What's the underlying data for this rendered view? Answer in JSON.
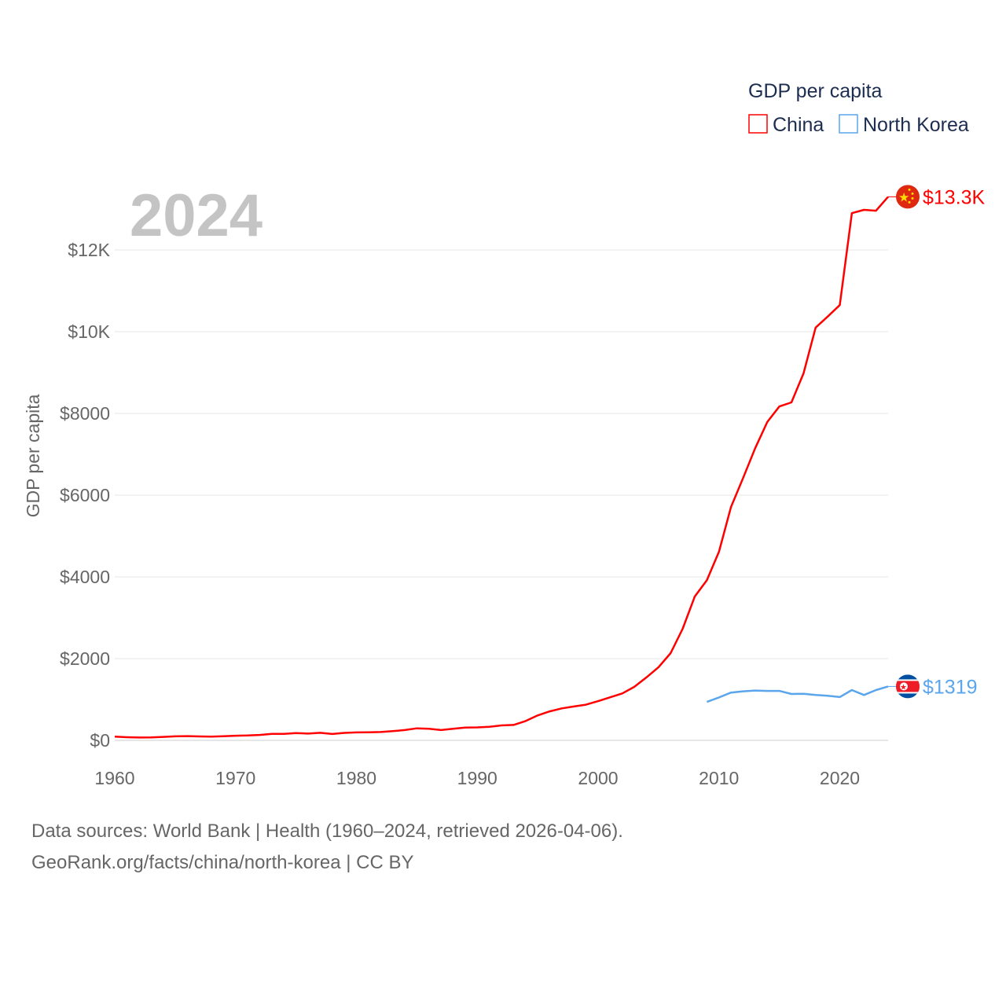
{
  "chart_data": {
    "type": "line",
    "title": "GDP per capita",
    "year_label": "2024",
    "ylabel": "GDP per capita",
    "xlabel": "",
    "xlim": [
      1960,
      2024
    ],
    "ylim": [
      0,
      13300
    ],
    "x_ticks": [
      1960,
      1970,
      1980,
      1990,
      2000,
      2010,
      2020
    ],
    "y_ticks": [
      0,
      2000,
      4000,
      6000,
      8000,
      10000,
      12000
    ],
    "y_tick_labels": [
      "$0",
      "$2000",
      "$4000",
      "$6000",
      "$8000",
      "$10K",
      "$12K"
    ],
    "grid": true,
    "legend_position": "top-right",
    "series": [
      {
        "name": "China",
        "color": "#ff0000",
        "end_label": "$13.3K",
        "flag": "china-flag",
        "x": [
          1960,
          1961,
          1962,
          1963,
          1964,
          1965,
          1966,
          1967,
          1968,
          1969,
          1970,
          1971,
          1972,
          1973,
          1974,
          1975,
          1976,
          1977,
          1978,
          1979,
          1980,
          1981,
          1982,
          1983,
          1984,
          1985,
          1986,
          1987,
          1988,
          1989,
          1990,
          1991,
          1992,
          1993,
          1994,
          1995,
          1996,
          1997,
          1998,
          1999,
          2000,
          2001,
          2002,
          2003,
          2004,
          2005,
          2006,
          2007,
          2008,
          2009,
          2010,
          2011,
          2012,
          2013,
          2014,
          2015,
          2016,
          2017,
          2018,
          2019,
          2020,
          2021,
          2022,
          2023,
          2024
        ],
        "values": [
          90,
          76,
          70,
          74,
          85,
          98,
          104,
          97,
          91,
          100,
          113,
          119,
          132,
          157,
          160,
          178,
          165,
          185,
          156,
          183,
          195,
          197,
          203,
          225,
          251,
          294,
          282,
          251,
          284,
          311,
          318,
          333,
          366,
          377,
          473,
          610,
          709,
          782,
          829,
          873,
          959,
          1053,
          1149,
          1310,
          1540,
          1790,
          2135,
          2730,
          3520,
          3920,
          4615,
          5710,
          6420,
          7150,
          7790,
          8170,
          8270,
          8980,
          10100,
          10370,
          10650,
          12900,
          12980,
          12960,
          13300
        ]
      },
      {
        "name": "North Korea",
        "color": "#5aa5ec",
        "end_label": "$1319",
        "flag": "north-korea-flag",
        "x": [
          2009,
          2010,
          2011,
          2012,
          2013,
          2014,
          2015,
          2016,
          2017,
          2018,
          2019,
          2020,
          2021,
          2022,
          2023,
          2024
        ],
        "values": [
          940,
          1050,
          1170,
          1200,
          1220,
          1210,
          1210,
          1135,
          1140,
          1110,
          1090,
          1060,
          1230,
          1110,
          1230,
          1319
        ]
      }
    ]
  },
  "footer": {
    "sources": "Data sources: World Bank | Health (1960–2024, retrieved 2026-04-06).",
    "credit": "GeoRank.org/facts/china/north-korea | CC BY"
  }
}
